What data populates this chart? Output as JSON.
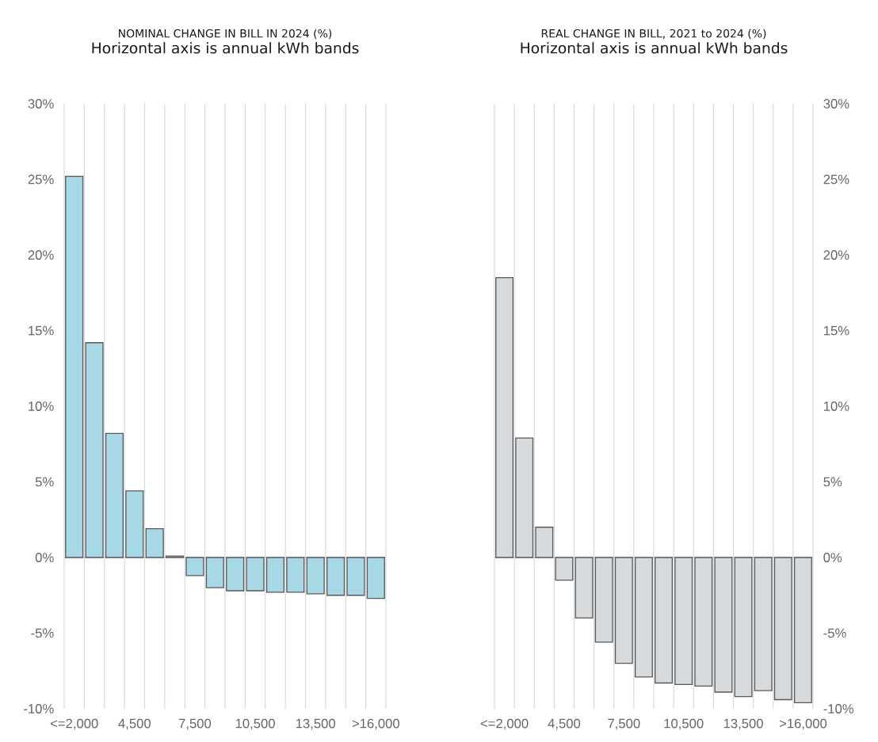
{
  "chart_data": [
    {
      "type": "bar",
      "title": "NOMINAL CHANGE IN BILL IN 2024 (%)",
      "subtitle": "Horizontal axis is annual kWh bands",
      "categories": [
        "<=2,000",
        null,
        null,
        "4,500",
        null,
        null,
        "7,500",
        null,
        null,
        "10,500",
        null,
        null,
        "13,500",
        null,
        null,
        ">16,000"
      ],
      "values": [
        25.2,
        14.2,
        8.2,
        4.4,
        1.9,
        0.1,
        -1.2,
        -2.0,
        -2.2,
        -2.2,
        -2.3,
        -2.3,
        -2.4,
        -2.5,
        -2.5,
        -2.7
      ],
      "color": "#a6d8e6",
      "ylim": [
        -10,
        30
      ],
      "yticks": [
        {
          "value": -10,
          "label": "-10%"
        },
        {
          "value": -5,
          "label": "-5%"
        },
        {
          "value": 0,
          "label": "0%"
        },
        {
          "value": 5,
          "label": "5%"
        },
        {
          "value": 10,
          "label": "10%"
        },
        {
          "value": 15,
          "label": "15%"
        },
        {
          "value": 20,
          "label": "20%"
        },
        {
          "value": 25,
          "label": "25%"
        },
        {
          "value": 30,
          "label": "30%"
        }
      ],
      "grid": "x"
    },
    {
      "type": "bar",
      "title": "REAL CHANGE IN BILL, 2021 to 2024 (%)",
      "subtitle": "Horizontal axis is annual kWh bands",
      "categories": [
        "<=2,000",
        null,
        null,
        "4,500",
        null,
        null,
        "7,500",
        null,
        null,
        "10,500",
        null,
        null,
        "13,500",
        null,
        null,
        ">16,000"
      ],
      "values": [
        18.5,
        7.9,
        2.0,
        -1.5,
        -4.0,
        -5.6,
        -7.0,
        -7.9,
        -8.3,
        -8.4,
        -8.5,
        -8.9,
        -9.2,
        -8.8,
        -9.4,
        -9.6
      ],
      "color": "#d7dadd",
      "ylim": [
        -10,
        30
      ],
      "yticks": [
        {
          "value": -10,
          "label": "-10%"
        },
        {
          "value": -5,
          "label": "-5%"
        },
        {
          "value": 0,
          "label": "0%"
        },
        {
          "value": 5,
          "label": "5%"
        },
        {
          "value": 10,
          "label": "10%"
        },
        {
          "value": 15,
          "label": "15%"
        },
        {
          "value": 20,
          "label": "20%"
        },
        {
          "value": 25,
          "label": "25%"
        },
        {
          "value": 30,
          "label": "30%"
        }
      ],
      "grid": "x"
    }
  ]
}
